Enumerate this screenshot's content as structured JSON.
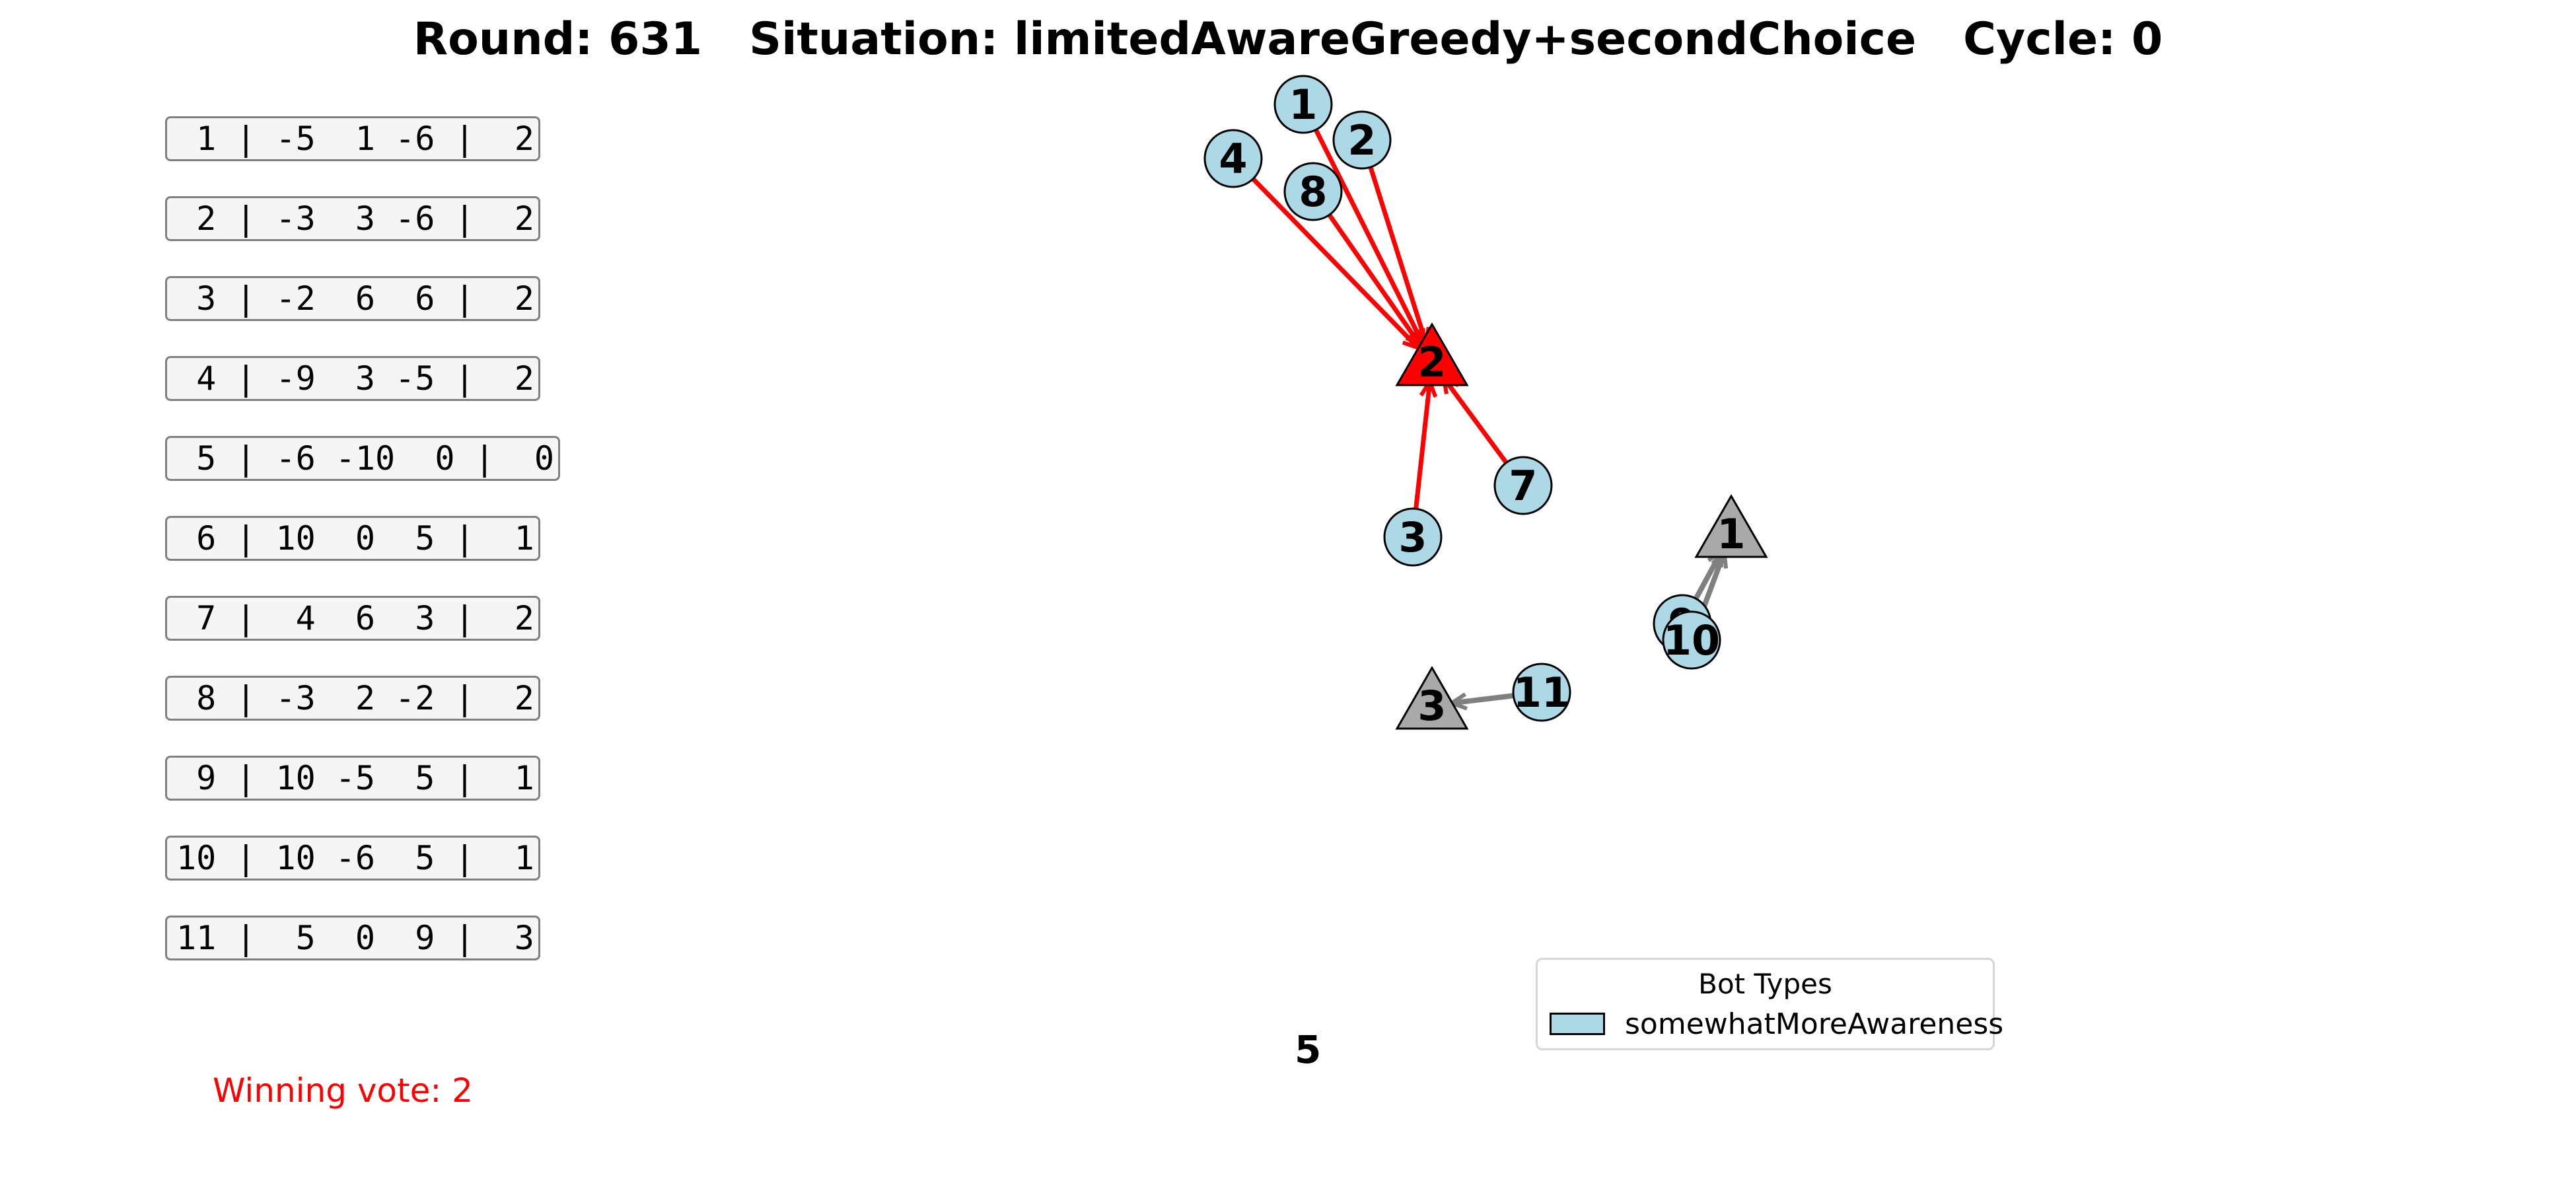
{
  "title": "Round: 631   Situation: limitedAwareGreedy+secondChoice   Cycle: 0",
  "ballots": [
    " 1 | -5  1 -6 |  2",
    " 2 | -3  3 -6 |  2",
    " 3 | -2  6  6 |  2",
    " 4 | -9  3 -5 |  2",
    " 5 | -6 -10  0 |  0",
    " 6 | 10  0  5 |  1",
    " 7 |  4  6  3 |  2",
    " 8 | -3  2 -2 |  2",
    " 9 | 10 -5  5 |  1",
    "10 | 10 -6  5 |  1",
    "11 |  5  0  9 |  3"
  ],
  "winning_vote": "Winning vote: 2",
  "footer_number": "5",
  "legend": {
    "title": "Bot Types",
    "label": "somewhatMoreAwareness"
  },
  "colors": {
    "bot_fill": "#add8e6",
    "winner_fill": "#ff0000",
    "option_fill": "#a9a9a9",
    "winner_edge": "#ff0000",
    "other_edge": "#808080",
    "winning_text": "#ff0000"
  },
  "options": [
    {
      "id": "2",
      "winner": true
    },
    {
      "id": "1",
      "winner": false
    },
    {
      "id": "3",
      "winner": false
    }
  ],
  "bots": [
    "1",
    "2",
    "4",
    "8",
    "7",
    "3",
    "9",
    "10",
    "11"
  ],
  "edges": [
    {
      "from": "4",
      "to": "2",
      "winner": true
    },
    {
      "from": "1",
      "to": "2",
      "winner": true
    },
    {
      "from": "2",
      "to": "2",
      "winner": true
    },
    {
      "from": "8",
      "to": "2",
      "winner": true
    },
    {
      "from": "3",
      "to": "2",
      "winner": true
    },
    {
      "from": "7",
      "to": "2",
      "winner": true
    },
    {
      "from": "9",
      "to": "1",
      "winner": false
    },
    {
      "from": "10",
      "to": "1",
      "winner": false
    },
    {
      "from": "11",
      "to": "3",
      "winner": false
    }
  ]
}
